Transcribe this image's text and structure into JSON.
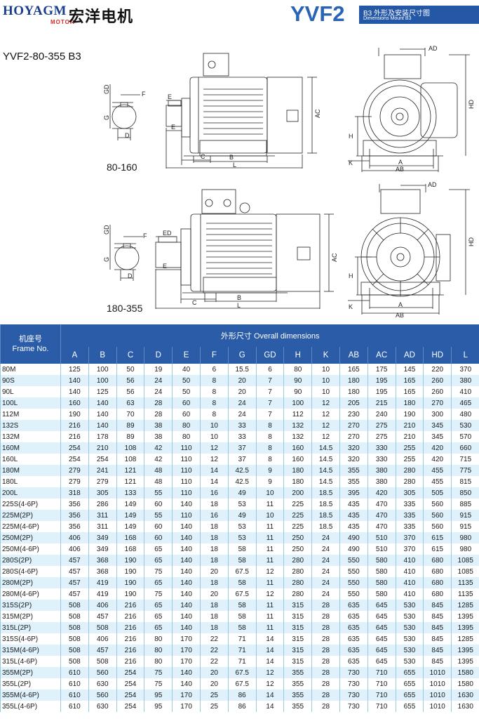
{
  "header": {
    "brand": "HOYAGM",
    "brand_sub": "MOTOR",
    "company_cn": "宏洋电机",
    "model": "YVF2",
    "badge_title": "B3 外形及安装尺寸图",
    "badge_subtitle": "Dimensions Mount B3"
  },
  "series_label": "YVF2-80-355 B3",
  "drawings": {
    "top_caption": "80-160",
    "bottom_caption": "180-355",
    "labels": {
      "GD": "GD",
      "F": "F",
      "G": "G",
      "D": "D",
      "E": "E",
      "C": "C",
      "B": "B",
      "L": "L",
      "AC": "AC",
      "AD": "AD",
      "HD": "HD",
      "H": "H",
      "K": "K",
      "A": "A",
      "AB": "AB",
      "ED": "ED"
    }
  },
  "table": {
    "frame_header_cn": "机座号",
    "frame_header_en": "Frame No.",
    "group_header": "外形尺寸 Overall dimensions",
    "columns": [
      "A",
      "B",
      "C",
      "D",
      "E",
      "F",
      "G",
      "GD",
      "H",
      "K",
      "AB",
      "AC",
      "AD",
      "HD",
      "L"
    ],
    "rows": [
      [
        "80M",
        "125",
        "100",
        "50",
        "19",
        "40",
        "6",
        "15.5",
        "6",
        "80",
        "10",
        "165",
        "175",
        "145",
        "220",
        "370"
      ],
      [
        "90S",
        "140",
        "100",
        "56",
        "24",
        "50",
        "8",
        "20",
        "7",
        "90",
        "10",
        "180",
        "195",
        "165",
        "260",
        "380"
      ],
      [
        "90L",
        "140",
        "125",
        "56",
        "24",
        "50",
        "8",
        "20",
        "7",
        "90",
        "10",
        "180",
        "195",
        "165",
        "260",
        "410"
      ],
      [
        "100L",
        "160",
        "140",
        "63",
        "28",
        "60",
        "8",
        "24",
        "7",
        "100",
        "12",
        "205",
        "215",
        "180",
        "270",
        "465"
      ],
      [
        "112M",
        "190",
        "140",
        "70",
        "28",
        "60",
        "8",
        "24",
        "7",
        "112",
        "12",
        "230",
        "240",
        "190",
        "300",
        "480"
      ],
      [
        "132S",
        "216",
        "140",
        "89",
        "38",
        "80",
        "10",
        "33",
        "8",
        "132",
        "12",
        "270",
        "275",
        "210",
        "345",
        "530"
      ],
      [
        "132M",
        "216",
        "178",
        "89",
        "38",
        "80",
        "10",
        "33",
        "8",
        "132",
        "12",
        "270",
        "275",
        "210",
        "345",
        "570"
      ],
      [
        "160M",
        "254",
        "210",
        "108",
        "42",
        "110",
        "12",
        "37",
        "8",
        "160",
        "14.5",
        "320",
        "330",
        "255",
        "420",
        "660"
      ],
      [
        "160L",
        "254",
        "254",
        "108",
        "42",
        "110",
        "12",
        "37",
        "8",
        "160",
        "14.5",
        "320",
        "330",
        "255",
        "420",
        "715"
      ],
      [
        "180M",
        "279",
        "241",
        "121",
        "48",
        "110",
        "14",
        "42.5",
        "9",
        "180",
        "14.5",
        "355",
        "380",
        "280",
        "455",
        "775"
      ],
      [
        "180L",
        "279",
        "279",
        "121",
        "48",
        "110",
        "14",
        "42.5",
        "9",
        "180",
        "14.5",
        "355",
        "380",
        "280",
        "455",
        "815"
      ],
      [
        "200L",
        "318",
        "305",
        "133",
        "55",
        "110",
        "16",
        "49",
        "10",
        "200",
        "18.5",
        "395",
        "420",
        "305",
        "505",
        "850"
      ],
      [
        "225S(4-6P)",
        "356",
        "286",
        "149",
        "60",
        "140",
        "18",
        "53",
        "11",
        "225",
        "18.5",
        "435",
        "470",
        "335",
        "560",
        "885"
      ],
      [
        "225M(2P)",
        "356",
        "311",
        "149",
        "55",
        "110",
        "16",
        "49",
        "10",
        "225",
        "18.5",
        "435",
        "470",
        "335",
        "560",
        "915"
      ],
      [
        "225M(4-6P)",
        "356",
        "311",
        "149",
        "60",
        "140",
        "18",
        "53",
        "11",
        "225",
        "18.5",
        "435",
        "470",
        "335",
        "560",
        "915"
      ],
      [
        "250M(2P)",
        "406",
        "349",
        "168",
        "60",
        "140",
        "18",
        "53",
        "11",
        "250",
        "24",
        "490",
        "510",
        "370",
        "615",
        "980"
      ],
      [
        "250M(4-6P)",
        "406",
        "349",
        "168",
        "65",
        "140",
        "18",
        "58",
        "11",
        "250",
        "24",
        "490",
        "510",
        "370",
        "615",
        "980"
      ],
      [
        "280S(2P)",
        "457",
        "368",
        "190",
        "65",
        "140",
        "18",
        "58",
        "11",
        "280",
        "24",
        "550",
        "580",
        "410",
        "680",
        "1085"
      ],
      [
        "280S(4-6P)",
        "457",
        "368",
        "190",
        "75",
        "140",
        "20",
        "67.5",
        "12",
        "280",
        "24",
        "550",
        "580",
        "410",
        "680",
        "1085"
      ],
      [
        "280M(2P)",
        "457",
        "419",
        "190",
        "65",
        "140",
        "18",
        "58",
        "11",
        "280",
        "24",
        "550",
        "580",
        "410",
        "680",
        "1135"
      ],
      [
        "280M(4-6P)",
        "457",
        "419",
        "190",
        "75",
        "140",
        "20",
        "67.5",
        "12",
        "280",
        "24",
        "550",
        "580",
        "410",
        "680",
        "1135"
      ],
      [
        "315S(2P)",
        "508",
        "406",
        "216",
        "65",
        "140",
        "18",
        "58",
        "11",
        "315",
        "28",
        "635",
        "645",
        "530",
        "845",
        "1285"
      ],
      [
        "315M(2P)",
        "508",
        "457",
        "216",
        "65",
        "140",
        "18",
        "58",
        "11",
        "315",
        "28",
        "635",
        "645",
        "530",
        "845",
        "1395"
      ],
      [
        "315L(2P)",
        "508",
        "508",
        "216",
        "65",
        "140",
        "18",
        "58",
        "11",
        "315",
        "28",
        "635",
        "645",
        "530",
        "845",
        "1395"
      ],
      [
        "315S(4-6P)",
        "508",
        "406",
        "216",
        "80",
        "170",
        "22",
        "71",
        "14",
        "315",
        "28",
        "635",
        "645",
        "530",
        "845",
        "1285"
      ],
      [
        "315M(4-6P)",
        "508",
        "457",
        "216",
        "80",
        "170",
        "22",
        "71",
        "14",
        "315",
        "28",
        "635",
        "645",
        "530",
        "845",
        "1395"
      ],
      [
        "315L(4-6P)",
        "508",
        "508",
        "216",
        "80",
        "170",
        "22",
        "71",
        "14",
        "315",
        "28",
        "635",
        "645",
        "530",
        "845",
        "1395"
      ],
      [
        "355M(2P)",
        "610",
        "560",
        "254",
        "75",
        "140",
        "20",
        "67.5",
        "12",
        "355",
        "28",
        "730",
        "710",
        "655",
        "1010",
        "1580"
      ],
      [
        "355L(2P)",
        "610",
        "630",
        "254",
        "75",
        "140",
        "20",
        "67.5",
        "12",
        "355",
        "28",
        "730",
        "710",
        "655",
        "1010",
        "1580"
      ],
      [
        "355M(4-6P)",
        "610",
        "560",
        "254",
        "95",
        "170",
        "25",
        "86",
        "14",
        "355",
        "28",
        "730",
        "710",
        "655",
        "1010",
        "1630"
      ],
      [
        "355L(4-6P)",
        "610",
        "630",
        "254",
        "95",
        "170",
        "25",
        "86",
        "14",
        "355",
        "28",
        "730",
        "710",
        "655",
        "1010",
        "1630"
      ]
    ]
  }
}
